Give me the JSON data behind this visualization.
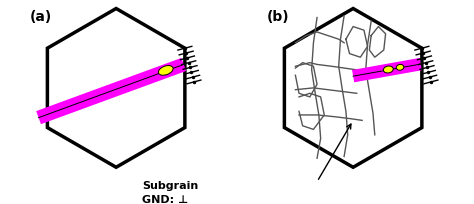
{
  "fig_width": 4.74,
  "fig_height": 2.05,
  "dpi": 100,
  "background": "#ffffff",
  "label_a": "(a)",
  "label_b": "(b)",
  "hex_linewidth": 2.5,
  "hex_fill": "#ffffff",
  "hex_edge": "#000000",
  "magenta_color": "#ff00ff",
  "yellow_color": "#ffff00",
  "black": "#000000",
  "sg_color": "#555555",
  "sg_lw": 1.0,
  "subgrain_label": "Subgrain",
  "gnd_label": "GND: ⊥"
}
